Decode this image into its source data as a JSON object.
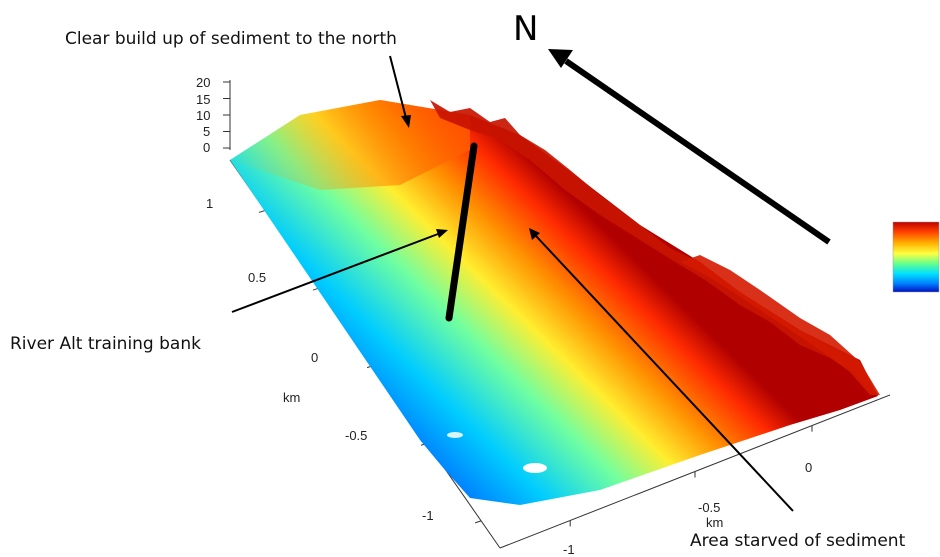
{
  "chart_data": {
    "type": "surface-3d",
    "title": "",
    "xlabel": "km",
    "ylabel": "km",
    "zlabel": "",
    "z_ticks": [
      "20",
      "15",
      "10",
      "5",
      "0"
    ],
    "y_ticks": [
      "1",
      "0.5",
      "0",
      "-0.5",
      "-1"
    ],
    "x_ticks": [
      "0",
      "-0.5",
      "-1"
    ],
    "zlim": [
      0,
      20
    ],
    "colormap": "jet",
    "colorbar_colors": [
      "#c00000",
      "#ff4000",
      "#ffb000",
      "#ffff40",
      "#60ff90",
      "#00e0ff",
      "#0080ff",
      "#0010c0"
    ]
  },
  "annotations": {
    "north": "N",
    "build_up": "Clear build up of sediment to the north",
    "training_bank": "River Alt training bank",
    "starved": "Area starved of sediment"
  }
}
